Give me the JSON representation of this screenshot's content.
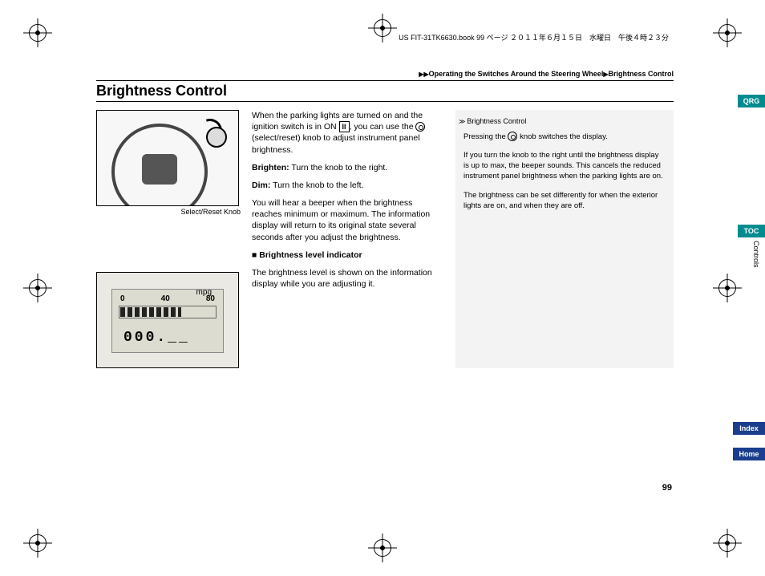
{
  "header_print_info": "US FIT-31TK6630.book  99 ページ  ２０１１年６月１５日　水曜日　午後４時２３分",
  "breadcrumb": {
    "a": "Operating the Switches Around the Steering Wheel",
    "b": "Brightness Control"
  },
  "title": "Brightness Control",
  "figure1_caption": "Select/Reset Knob",
  "main": {
    "p1a": "When the parking lights are turned on and the ignition switch is in ON ",
    "ignition_mode": "II",
    "p1b": ", you can use the ",
    "p1c": " (select/reset) knob to adjust instrument panel brightness.",
    "brighten_label": "Brighten:",
    "brighten_text": " Turn the knob to the right.",
    "dim_label": "Dim:",
    "dim_text": " Turn the knob to the left.",
    "p2": "You will hear a beeper when the brightness reaches minimum or maximum. The information display will return to its original state several seconds after you adjust the brightness.",
    "sub_heading": "■ Brightness level indicator",
    "p3": "The brightness level is shown on the information display while you are adjusting it."
  },
  "side": {
    "heading": "Brightness Control",
    "p1a": "Pressing the ",
    "p1b": " knob switches the display.",
    "p2": "If you turn the knob to the right until the brightness display is up to max, the beeper sounds. This cancels the reduced instrument panel brightness when the parking lights are on.",
    "p3": "The brightness can be set differently for when the exterior lights are on, and when they are off."
  },
  "display": {
    "unit": "mpg",
    "scale_min": "0",
    "scale_mid": "40",
    "scale_max": "80",
    "odometer": "000.__"
  },
  "tabs": {
    "qrg": "QRG",
    "toc": "TOC",
    "index": "Index",
    "home": "Home"
  },
  "section_label": "Controls",
  "page_number": "99",
  "colors": {
    "teal": "#008b8f",
    "blue": "#1a3e8c",
    "side_bg": "#f3f3f3",
    "lcd_bg": "#dcdcd0"
  }
}
